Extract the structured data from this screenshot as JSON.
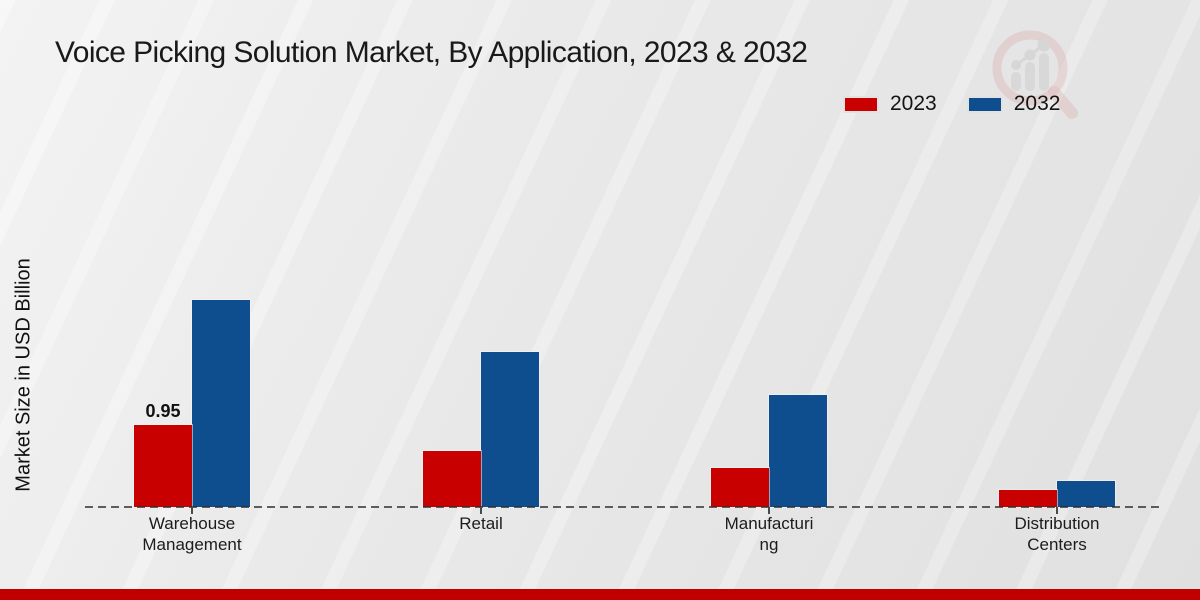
{
  "title": "Voice Picking Solution Market, By Application, 2023 & 2032",
  "y_axis": {
    "label": "Market Size in USD Billion"
  },
  "legend": {
    "items": [
      {
        "label": "2023",
        "color": "#c80000"
      },
      {
        "label": "2032",
        "color": "#0e4e8e"
      }
    ]
  },
  "chart_data": {
    "type": "bar",
    "title": "Voice Picking Solution Market, By Application, 2023 & 2032",
    "categories": [
      "Warehouse Management",
      "Retail",
      "Manufacturing",
      "Distribution Centers"
    ],
    "category_display_lines": [
      [
        "Warehouse",
        "Management"
      ],
      [
        "Retail"
      ],
      [
        "Manufacturi",
        "ng"
      ],
      [
        "Distribution",
        "Centers"
      ]
    ],
    "series": [
      {
        "name": "2023",
        "color": "#c80000",
        "values": [
          0.95,
          0.65,
          0.45,
          0.2
        ]
      },
      {
        "name": "2032",
        "color": "#0e4e8e",
        "values": [
          2.4,
          1.8,
          1.3,
          0.3
        ]
      }
    ],
    "data_labels": [
      {
        "series": "2023",
        "category": "Warehouse Management",
        "text": "0.95"
      }
    ],
    "xlabel": "",
    "ylabel": "Market Size in USD Billion",
    "ylim": [
      0,
      3.0
    ],
    "grid": false,
    "legend_position": "top-right",
    "baseline_style": "dashed"
  },
  "branding": {
    "watermark_icon": "magnifier-bar-chart-logo",
    "bottom_bar_color": "#c00000"
  }
}
